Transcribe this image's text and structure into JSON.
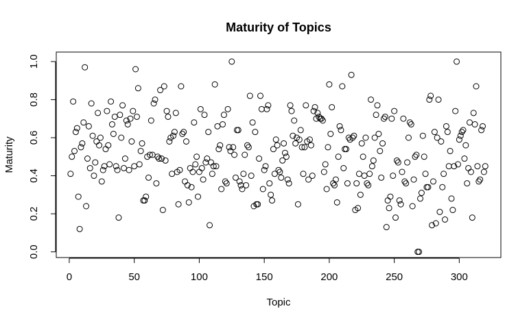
{
  "chart_data": {
    "type": "scatter",
    "title": "Maturity of Topics",
    "x_label": "Topic",
    "y_label": "Maturity",
    "x": [
      1,
      2,
      3,
      4,
      5,
      6,
      7,
      8,
      9,
      10,
      11,
      12,
      13,
      14,
      15,
      16,
      17,
      18,
      19,
      20,
      21,
      22,
      23,
      24,
      25,
      26,
      27,
      28,
      29,
      30,
      31,
      32,
      33,
      34,
      35,
      36,
      37,
      38,
      39,
      40,
      41,
      42,
      43,
      44,
      45,
      46,
      47,
      48,
      49,
      50,
      51,
      52,
      53,
      54,
      55,
      56,
      57,
      58,
      59,
      60,
      61,
      62,
      63,
      64,
      65,
      66,
      67,
      68,
      69,
      70,
      71,
      72,
      73,
      74,
      75,
      76,
      77,
      78,
      79,
      80,
      81,
      82,
      83,
      84,
      85,
      86,
      87,
      88,
      89,
      90,
      91,
      92,
      93,
      94,
      95,
      96,
      97,
      98,
      99,
      100,
      101,
      102,
      103,
      104,
      105,
      106,
      107,
      108,
      109,
      110,
      111,
      112,
      113,
      114,
      115,
      116,
      117,
      118,
      119,
      120,
      121,
      122,
      123,
      124,
      125,
      126,
      127,
      128,
      129,
      130,
      131,
      132,
      133,
      134,
      135,
      136,
      137,
      138,
      139,
      140,
      141,
      142,
      143,
      144,
      145,
      146,
      147,
      148,
      149,
      150,
      151,
      152,
      153,
      154,
      155,
      156,
      157,
      158,
      159,
      160,
      161,
      162,
      163,
      164,
      165,
      166,
      167,
      168,
      169,
      170,
      171,
      172,
      173,
      174,
      175,
      176,
      177,
      178,
      179,
      180,
      181,
      182,
      183,
      184,
      185,
      186,
      187,
      188,
      189,
      190,
      191,
      192,
      193,
      194,
      195,
      196,
      197,
      198,
      199,
      200,
      201,
      202,
      203,
      204,
      205,
      206,
      207,
      208,
      209,
      210,
      211,
      212,
      213,
      214,
      215,
      216,
      217,
      218,
      219,
      220,
      221,
      222,
      223,
      224,
      225,
      226,
      227,
      228,
      229,
      230,
      231,
      232,
      233,
      234,
      235,
      236,
      237,
      238,
      239,
      240,
      241,
      242,
      243,
      244,
      245,
      246,
      247,
      248,
      249,
      250,
      251,
      252,
      253,
      254,
      255,
      256,
      257,
      258,
      259,
      260,
      261,
      262,
      263,
      264,
      265,
      266,
      267,
      268,
      269,
      270,
      271,
      272,
      273,
      274,
      275,
      276,
      277,
      278,
      279,
      280,
      281,
      282,
      283,
      284,
      285,
      286,
      287,
      288,
      289,
      290,
      291,
      292,
      293,
      294,
      295,
      296,
      297,
      298,
      299,
      300,
      301,
      302,
      303,
      304,
      305,
      306,
      307,
      308,
      309,
      310,
      311,
      312,
      313,
      314,
      315,
      316,
      317,
      318,
      319,
      320
    ],
    "values": [
      0.41,
      0.5,
      0.79,
      0.53,
      0.63,
      0.65,
      0.29,
      0.12,
      0.55,
      0.57,
      0.68,
      0.97,
      0.24,
      0.49,
      0.66,
      0.44,
      0.78,
      0.61,
      0.4,
      0.47,
      0.58,
      0.73,
      0.56,
      0.6,
      0.37,
      0.43,
      0.45,
      0.54,
      0.74,
      0.56,
      0.46,
      0.79,
      0.67,
      0.62,
      0.71,
      0.45,
      0.43,
      0.18,
      0.72,
      0.6,
      0.77,
      0.44,
      0.49,
      0.69,
      0.67,
      0.43,
      0.7,
      0.58,
      0.74,
      0.45,
      0.96,
      0.71,
      0.86,
      0.46,
      0.53,
      0.57,
      0.27,
      0.27,
      0.29,
      0.5,
      0.39,
      0.51,
      0.69,
      0.51,
      0.78,
      0.8,
      0.36,
      0.5,
      0.49,
      0.85,
      0.49,
      0.22,
      0.87,
      0.48,
      0.74,
      0.71,
      0.58,
      0.6,
      0.41,
      0.61,
      0.63,
      0.73,
      0.42,
      0.25,
      0.43,
      0.87,
      0.62,
      0.63,
      0.37,
      0.58,
      0.35,
      0.26,
      0.44,
      0.34,
      0.42,
      0.68,
      0.46,
      0.5,
      0.29,
      0.42,
      0.75,
      0.44,
      0.38,
      0.72,
      0.47,
      0.49,
      0.63,
      0.14,
      0.47,
      0.41,
      0.45,
      0.88,
      0.45,
      0.66,
      0.54,
      0.56,
      0.33,
      0.67,
      0.72,
      0.37,
      0.36,
      0.75,
      0.55,
      0.53,
      1.0,
      0.55,
      0.51,
      0.39,
      0.64,
      0.64,
      0.37,
      0.35,
      0.33,
      0.41,
      0.51,
      0.35,
      0.56,
      0.55,
      0.82,
      0.4,
      0.68,
      0.24,
      0.63,
      0.25,
      0.25,
      0.49,
      0.82,
      0.75,
      0.33,
      0.43,
      0.45,
      0.75,
      0.77,
      0.36,
      0.3,
      0.27,
      0.54,
      0.41,
      0.59,
      0.56,
      0.43,
      0.42,
      0.39,
      0.48,
      0.57,
      0.52,
      0.5,
      0.38,
      0.36,
      0.77,
      0.74,
      0.61,
      0.69,
      0.57,
      0.6,
      0.25,
      0.59,
      0.64,
      0.55,
      0.41,
      0.55,
      0.77,
      0.58,
      0.38,
      0.59,
      0.56,
      0.4,
      0.74,
      0.76,
      0.7,
      0.73,
      0.71,
      0.7,
      0.7,
      0.69,
      0.42,
      0.46,
      0.33,
      0.55,
      0.88,
      0.62,
      0.76,
      0.36,
      0.35,
      0.38,
      0.26,
      0.5,
      0.66,
      0.64,
      0.87,
      0.44,
      0.54,
      0.54,
      0.36,
      0.6,
      0.59,
      0.93,
      0.6,
      0.61,
      0.22,
      0.36,
      0.23,
      0.41,
      0.3,
      0.57,
      0.5,
      0.4,
      0.6,
      0.36,
      0.35,
      0.41,
      0.8,
      0.45,
      0.48,
      0.6,
      0.72,
      0.77,
      0.62,
      0.53,
      0.39,
      0.57,
      0.7,
      0.71,
      0.13,
      0.27,
      0.23,
      0.29,
      0.7,
      0.4,
      0.74,
      0.18,
      0.48,
      0.47,
      0.27,
      0.25,
      0.42,
      0.7,
      0.37,
      0.36,
      0.47,
      0.6,
      0.68,
      0.67,
      0.24,
      0.38,
      0.5,
      0.51,
      0.0,
      0.0,
      0.28,
      0.31,
      0.61,
      0.5,
      0.41,
      0.34,
      0.34,
      0.8,
      0.82,
      0.14,
      0.37,
      0.63,
      0.15,
      0.6,
      0.8,
      0.21,
      0.58,
      0.34,
      0.41,
      0.17,
      0.66,
      0.63,
      0.45,
      0.53,
      0.28,
      0.22,
      0.45,
      0.74,
      1.0,
      0.46,
      0.59,
      0.61,
      0.63,
      0.64,
      0.49,
      0.56,
      0.36,
      0.44,
      0.68,
      0.42,
      0.18,
      0.73,
      0.67,
      0.87,
      0.45,
      0.37,
      0.38,
      0.64,
      0.66,
      0.42,
      0.45
    ],
    "color": "#000000",
    "xlim": [
      -10,
      332
    ],
    "xticks": [
      0,
      50,
      100,
      150,
      200,
      250,
      300
    ],
    "ylim": [
      -0.03,
      1.05
    ],
    "yticks": [
      {
        "value": 0,
        "label": "0.0"
      },
      0.2,
      0.4,
      0.6,
      0.8,
      {
        "value": 1,
        "label": "1.0"
      }
    ],
    "grid": false
  }
}
